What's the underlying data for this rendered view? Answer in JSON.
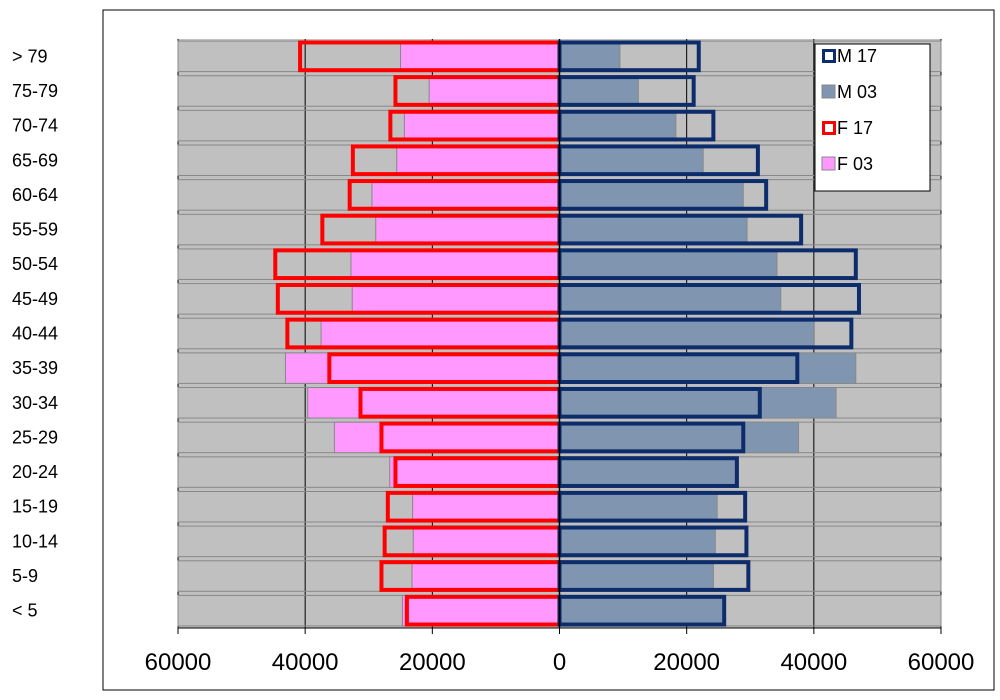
{
  "chart_data": {
    "type": "bar",
    "orientation": "horizontal",
    "diverging": true,
    "categories": [
      "< 5",
      "5-9",
      "10-14",
      "15-19",
      "20-24",
      "25-29",
      "30-34",
      "35-39",
      "40-44",
      "45-49",
      "50-54",
      "55-59",
      "60-64",
      "65-69",
      "70-74",
      "75-79",
      "> 79"
    ],
    "xlim": [
      -60000,
      60000
    ],
    "xticks": [
      -60000,
      -40000,
      -20000,
      0,
      20000,
      40000,
      60000
    ],
    "xtick_labels": [
      "60000",
      "40000",
      "20000",
      "0",
      "20000",
      "40000",
      "60000"
    ],
    "grid": true,
    "legend_position": "top-right",
    "colors": {
      "plot_background": "#c0c0c0",
      "gridline": "#000000",
      "bar_outline": "#888888",
      "axis": "#000000"
    },
    "series": [
      {
        "name": "F 03",
        "side": "left",
        "style": "filled",
        "fill": "#ff99ff",
        "values": [
          24700,
          23200,
          23000,
          23100,
          26700,
          35400,
          39600,
          43100,
          37500,
          32600,
          32800,
          28900,
          29500,
          25600,
          24400,
          20500,
          25000
        ]
      },
      {
        "name": "F 17",
        "side": "left",
        "style": "outline",
        "stroke": "#ff0000",
        "values": [
          24000,
          28000,
          27500,
          27000,
          25800,
          28000,
          31300,
          36200,
          42800,
          44300,
          44700,
          37300,
          33000,
          32500,
          26600,
          25800,
          40800
        ]
      },
      {
        "name": "M 03",
        "side": "right",
        "style": "filled",
        "fill": "#8096b0",
        "values": [
          25800,
          24200,
          24500,
          24800,
          27600,
          37600,
          43500,
          46600,
          40000,
          34800,
          34200,
          29500,
          28900,
          22600,
          18300,
          12400,
          9500
        ]
      },
      {
        "name": "M 17",
        "side": "right",
        "style": "outline",
        "stroke": "#0d2c6b",
        "values": [
          25900,
          29700,
          29400,
          29200,
          27900,
          28900,
          31500,
          37400,
          45900,
          47100,
          46600,
          38000,
          32500,
          31200,
          24200,
          21100,
          21900
        ]
      }
    ],
    "legend": [
      {
        "label": "M 17",
        "style": "outline",
        "color": "#0d2c6b"
      },
      {
        "label": "M 03",
        "style": "filled",
        "color": "#8096b0"
      },
      {
        "label": "F 17",
        "style": "outline",
        "color": "#ff0000"
      },
      {
        "label": "F 03",
        "style": "filled",
        "color": "#ff99ff"
      }
    ]
  }
}
